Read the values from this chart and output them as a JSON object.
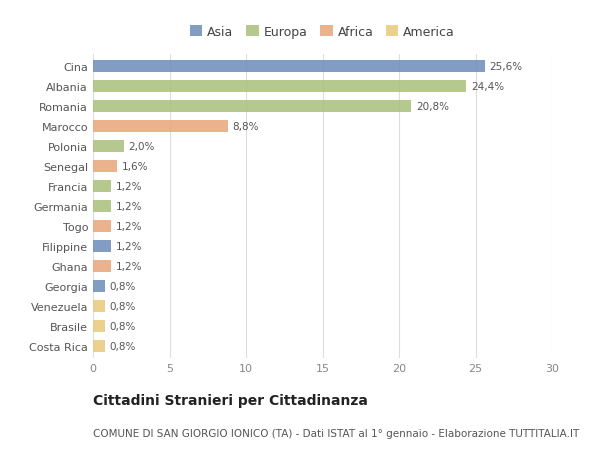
{
  "countries": [
    "Cina",
    "Albania",
    "Romania",
    "Marocco",
    "Polonia",
    "Senegal",
    "Francia",
    "Germania",
    "Togo",
    "Filippine",
    "Ghana",
    "Georgia",
    "Venezuela",
    "Brasile",
    "Costa Rica"
  ],
  "values": [
    25.6,
    24.4,
    20.8,
    8.8,
    2.0,
    1.6,
    1.2,
    1.2,
    1.2,
    1.2,
    1.2,
    0.8,
    0.8,
    0.8,
    0.8
  ],
  "labels": [
    "25,6%",
    "24,4%",
    "20,8%",
    "8,8%",
    "2,0%",
    "1,6%",
    "1,2%",
    "1,2%",
    "1,2%",
    "1,2%",
    "1,2%",
    "0,8%",
    "0,8%",
    "0,8%",
    "0,8%"
  ],
  "continents": [
    "Asia",
    "Europa",
    "Europa",
    "Africa",
    "Europa",
    "Africa",
    "Europa",
    "Europa",
    "Africa",
    "Asia",
    "Africa",
    "Asia",
    "America",
    "America",
    "America"
  ],
  "colors": {
    "Asia": "#6b8cba",
    "Europa": "#a8c07a",
    "Africa": "#e8a57a",
    "America": "#e8c97a"
  },
  "xlim": [
    0,
    30
  ],
  "xticks": [
    0,
    5,
    10,
    15,
    20,
    25,
    30
  ],
  "title": "Cittadini Stranieri per Cittadinanza",
  "subtitle": "COMUNE DI SAN GIORGIO IONICO (TA) - Dati ISTAT al 1° gennaio - Elaborazione TUTTITALIA.IT",
  "background_color": "#ffffff",
  "grid_color": "#dddddd",
  "bar_height": 0.6,
  "title_fontsize": 10,
  "subtitle_fontsize": 7.5,
  "label_fontsize": 7.5,
  "tick_fontsize": 8,
  "legend_fontsize": 9
}
